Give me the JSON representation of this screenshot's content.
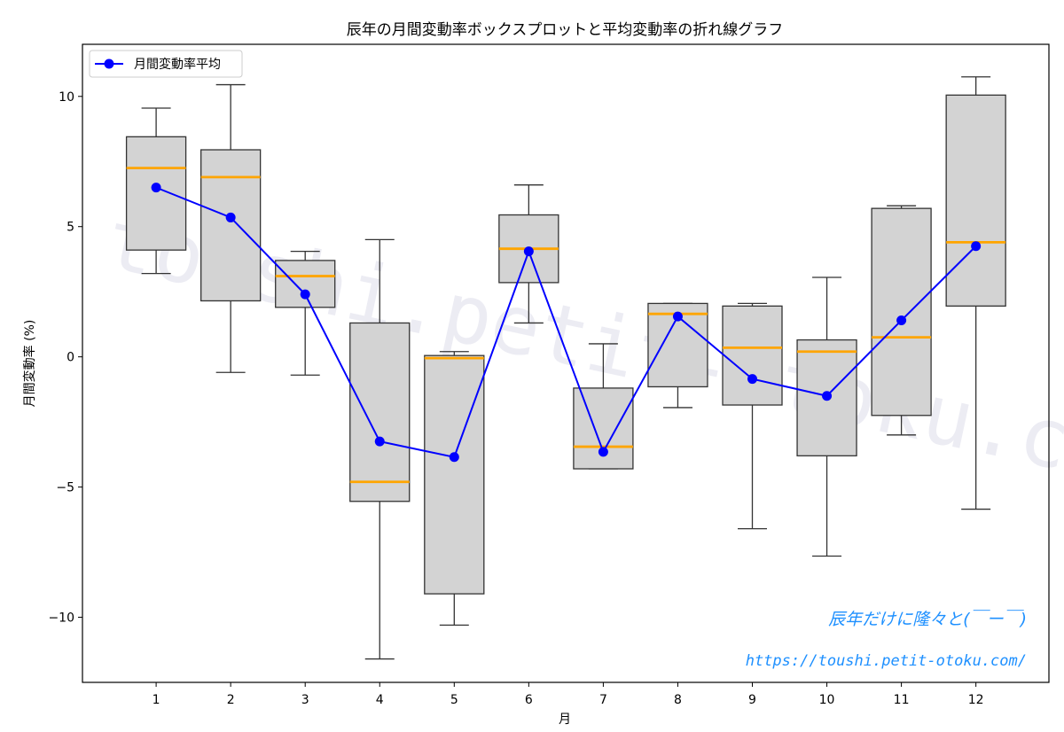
{
  "chart_data": {
    "type": "box",
    "title": "辰年の月間変動率ボックスプロットと平均変動率の折れ線グラフ",
    "xlabel": "月",
    "ylabel": "月間変動率 (%)",
    "categories": [
      "1",
      "2",
      "3",
      "4",
      "5",
      "6",
      "7",
      "8",
      "9",
      "10",
      "11",
      "12"
    ],
    "ylim": [
      -12.5,
      12.0
    ],
    "yticks": [
      -10,
      -5,
      0,
      5,
      10
    ],
    "ytick_labels": [
      "−10",
      "−5",
      "0",
      "5",
      "10"
    ],
    "boxes": [
      {
        "whisker_low": 3.2,
        "q1": 4.1,
        "median": 7.25,
        "q3": 8.45,
        "whisker_high": 9.55
      },
      {
        "whisker_low": -0.6,
        "q1": 2.15,
        "median": 6.9,
        "q3": 7.95,
        "whisker_high": 10.45
      },
      {
        "whisker_low": -0.7,
        "q1": 1.9,
        "median": 3.1,
        "q3": 3.7,
        "whisker_high": 4.05
      },
      {
        "whisker_low": -11.6,
        "q1": -5.55,
        "median": -4.8,
        "q3": 1.3,
        "whisker_high": 4.5
      },
      {
        "whisker_low": -10.3,
        "q1": -9.1,
        "median": -0.05,
        "q3": 0.05,
        "whisker_high": 0.2
      },
      {
        "whisker_low": 1.3,
        "q1": 2.85,
        "median": 4.15,
        "q3": 5.45,
        "whisker_high": 6.6
      },
      {
        "whisker_low": -4.3,
        "q1": -4.3,
        "median": -3.45,
        "q3": -1.2,
        "whisker_high": 0.5
      },
      {
        "whisker_low": -1.95,
        "q1": -1.15,
        "median": 1.65,
        "q3": 2.05,
        "whisker_high": 2.05
      },
      {
        "whisker_low": -6.6,
        "q1": -1.85,
        "median": 0.35,
        "q3": 1.95,
        "whisker_high": 2.05
      },
      {
        "whisker_low": -7.65,
        "q1": -3.8,
        "median": 0.2,
        "q3": 0.65,
        "whisker_high": 3.05
      },
      {
        "whisker_low": -3.0,
        "q1": -2.25,
        "median": 0.75,
        "q3": 5.7,
        "whisker_high": 5.8
      },
      {
        "whisker_low": -5.85,
        "q1": 1.95,
        "median": 4.4,
        "q3": 10.05,
        "whisker_high": 10.75
      }
    ],
    "series": [
      {
        "name": "月間変動率平均",
        "values": [
          6.5,
          5.35,
          2.4,
          -3.25,
          -3.85,
          4.05,
          -3.65,
          1.55,
          -0.85,
          -1.5,
          1.4,
          4.25
        ]
      }
    ],
    "legend": "top-left",
    "colors": {
      "box_fill": "#d3d3d3",
      "box_edge": "#333333",
      "median": "#ffa500",
      "line": "#0000ff"
    }
  },
  "watermark": {
    "text": "toushi.petit-otoku.com",
    "signature": "辰年だけに隆々と(￣ー￣)",
    "url": "https://toushi.petit-otoku.com/",
    "color": "#1e90ff"
  }
}
